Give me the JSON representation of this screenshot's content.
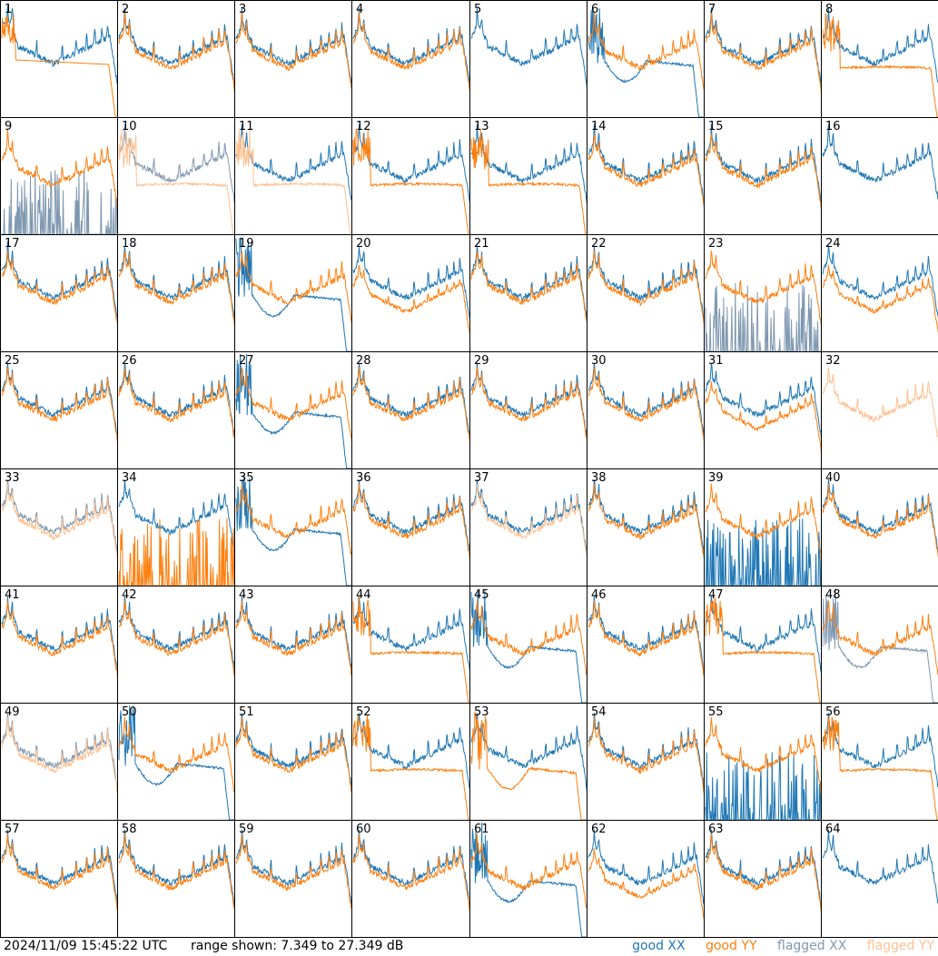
{
  "chart_data": {
    "type": "line",
    "layout": "small-multiples 8x8",
    "timestamp": "2024/11/09 15:45:22 UTC",
    "range_label": "range shown: 7.349 to 27.349 dB",
    "ylim": [
      7.349,
      27.349
    ],
    "legend": [
      {
        "label": "good XX",
        "color": "#1f77b4"
      },
      {
        "label": "good YY",
        "color": "#ff7f0e"
      },
      {
        "label": "flagged XX",
        "color": "#7f98b0"
      },
      {
        "label": "flagged YY",
        "color": "#ffc090"
      }
    ],
    "panels": [
      {
        "id": "1",
        "xx": "pA",
        "yy": "drop",
        "flagged": []
      },
      {
        "id": "2",
        "xx": "std",
        "yy": "std",
        "flagged": []
      },
      {
        "id": "3",
        "xx": "std",
        "yy": "std",
        "flagged": []
      },
      {
        "id": "4",
        "xx": "std",
        "yy": "std",
        "flagged": []
      },
      {
        "id": "5",
        "xx": "std",
        "yy": "none",
        "flagged": []
      },
      {
        "id": "6",
        "xx": "bowl",
        "yy": "std",
        "flagged": []
      },
      {
        "id": "7",
        "xx": "std",
        "yy": "std",
        "flagged": []
      },
      {
        "id": "8",
        "xx": "std",
        "yy": "dropflat",
        "flagged": []
      },
      {
        "id": "9",
        "xx": "spikes",
        "yy": "std",
        "flagged": [
          "xx"
        ]
      },
      {
        "id": "10",
        "xx": "std",
        "yy": "dropflat",
        "flagged": [
          "xx",
          "yy"
        ]
      },
      {
        "id": "11",
        "xx": "std",
        "yy": "dropflat",
        "flagged": [
          "yy"
        ]
      },
      {
        "id": "12",
        "xx": "std",
        "yy": "dropflat",
        "flagged": []
      },
      {
        "id": "13",
        "xx": "std",
        "yy": "dropflat",
        "flagged": []
      },
      {
        "id": "14",
        "xx": "std",
        "yy": "std",
        "flagged": []
      },
      {
        "id": "15",
        "xx": "std",
        "yy": "std",
        "flagged": []
      },
      {
        "id": "16",
        "xx": "std",
        "yy": "none",
        "flagged": []
      },
      {
        "id": "17",
        "xx": "std",
        "yy": "std",
        "flagged": []
      },
      {
        "id": "18",
        "xx": "std",
        "yy": "std",
        "flagged": []
      },
      {
        "id": "19",
        "xx": "bowl",
        "yy": "std",
        "flagged": []
      },
      {
        "id": "20",
        "xx": "std",
        "yy": "low",
        "flagged": []
      },
      {
        "id": "21",
        "xx": "std",
        "yy": "std",
        "flagged": []
      },
      {
        "id": "22",
        "xx": "std",
        "yy": "std",
        "flagged": []
      },
      {
        "id": "23",
        "xx": "spikes",
        "yy": "std",
        "flagged": [
          "xx"
        ]
      },
      {
        "id": "24",
        "xx": "std",
        "yy": "low",
        "flagged": []
      },
      {
        "id": "25",
        "xx": "std",
        "yy": "std",
        "flagged": []
      },
      {
        "id": "26",
        "xx": "std",
        "yy": "std",
        "flagged": []
      },
      {
        "id": "27",
        "xx": "bowl",
        "yy": "std",
        "flagged": []
      },
      {
        "id": "28",
        "xx": "std",
        "yy": "std",
        "flagged": []
      },
      {
        "id": "29",
        "xx": "std",
        "yy": "std",
        "flagged": []
      },
      {
        "id": "30",
        "xx": "std",
        "yy": "std",
        "flagged": []
      },
      {
        "id": "31",
        "xx": "std",
        "yy": "low",
        "flagged": []
      },
      {
        "id": "32",
        "xx": "none",
        "yy": "std",
        "flagged": [
          "yy"
        ]
      },
      {
        "id": "33",
        "xx": "std",
        "yy": "std",
        "flagged": [
          "xx",
          "yy"
        ]
      },
      {
        "id": "34",
        "xx": "std",
        "yy": "spikes",
        "flagged": []
      },
      {
        "id": "35",
        "xx": "bowl",
        "yy": "std",
        "flagged": []
      },
      {
        "id": "36",
        "xx": "std",
        "yy": "std",
        "flagged": []
      },
      {
        "id": "37",
        "xx": "std",
        "yy": "std",
        "flagged": [
          "yy"
        ]
      },
      {
        "id": "38",
        "xx": "std",
        "yy": "std",
        "flagged": []
      },
      {
        "id": "39",
        "xx": "spikes",
        "yy": "std",
        "flagged": []
      },
      {
        "id": "40",
        "xx": "std",
        "yy": "std",
        "flagged": []
      },
      {
        "id": "41",
        "xx": "std",
        "yy": "std",
        "flagged": []
      },
      {
        "id": "42",
        "xx": "std",
        "yy": "std",
        "flagged": []
      },
      {
        "id": "43",
        "xx": "std",
        "yy": "std",
        "flagged": []
      },
      {
        "id": "44",
        "xx": "std",
        "yy": "dropflat",
        "flagged": []
      },
      {
        "id": "45",
        "xx": "bowl",
        "yy": "std",
        "flagged": []
      },
      {
        "id": "46",
        "xx": "std",
        "yy": "std",
        "flagged": []
      },
      {
        "id": "47",
        "xx": "std",
        "yy": "dropflat",
        "flagged": []
      },
      {
        "id": "48",
        "xx": "bowl",
        "yy": "std",
        "flagged": [
          "xx"
        ]
      },
      {
        "id": "49",
        "xx": "std",
        "yy": "std",
        "flagged": [
          "xx",
          "yy"
        ]
      },
      {
        "id": "50",
        "xx": "bowl",
        "yy": "std",
        "flagged": []
      },
      {
        "id": "51",
        "xx": "std",
        "yy": "std",
        "flagged": []
      },
      {
        "id": "52",
        "xx": "std",
        "yy": "dropflat",
        "flagged": []
      },
      {
        "id": "53",
        "xx": "std",
        "yy": "bowl",
        "flagged": []
      },
      {
        "id": "54",
        "xx": "std",
        "yy": "std",
        "flagged": []
      },
      {
        "id": "55",
        "xx": "spikes",
        "yy": "std",
        "flagged": []
      },
      {
        "id": "56",
        "xx": "std",
        "yy": "dropflat",
        "flagged": []
      },
      {
        "id": "57",
        "xx": "std",
        "yy": "std",
        "flagged": []
      },
      {
        "id": "58",
        "xx": "std",
        "yy": "std",
        "flagged": []
      },
      {
        "id": "59",
        "xx": "std",
        "yy": "std",
        "flagged": []
      },
      {
        "id": "60",
        "xx": "std",
        "yy": "std",
        "flagged": []
      },
      {
        "id": "61",
        "xx": "bowl",
        "yy": "std",
        "flagged": []
      },
      {
        "id": "62",
        "xx": "std",
        "yy": "low",
        "flagged": []
      },
      {
        "id": "63",
        "xx": "std",
        "yy": "std",
        "flagged": []
      },
      {
        "id": "64",
        "xx": "std",
        "yy": "none",
        "flagged": []
      }
    ]
  }
}
